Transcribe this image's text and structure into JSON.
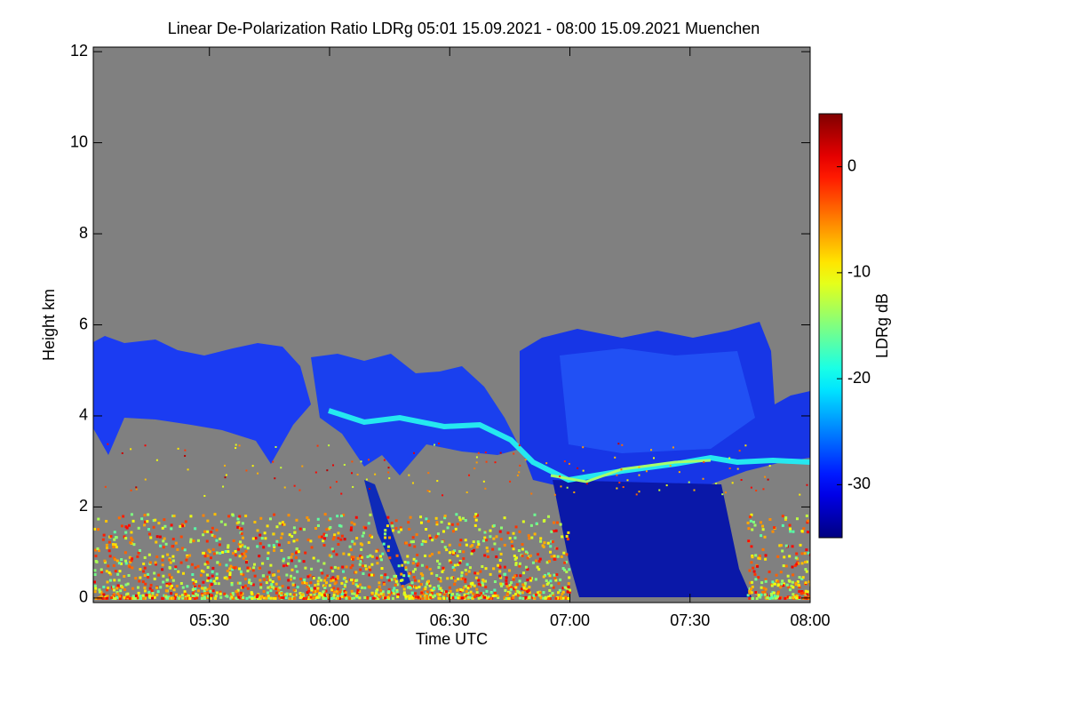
{
  "chart_data": {
    "type": "heatmap",
    "title": "Linear De-Polarization Ratio LDRg   05:01 15.09.2021 - 08:00 15.09.2021 Muenchen",
    "x_label": "Time UTC",
    "y_label": "Height km",
    "xlim": [
      301,
      480
    ],
    "xticks": [
      {
        "value": 330,
        "label": "05:30"
      },
      {
        "value": 360,
        "label": "06:00"
      },
      {
        "value": 390,
        "label": "06:30"
      },
      {
        "value": 420,
        "label": "07:00"
      },
      {
        "value": 450,
        "label": "07:30"
      },
      {
        "value": 480,
        "label": "08:00"
      }
    ],
    "ylim": [
      -0.1,
      12.1
    ],
    "yticks": [
      0,
      2,
      4,
      6,
      8,
      10,
      12
    ],
    "background": "#808080",
    "colorbar": {
      "label": "LDRg dB",
      "lim": [
        -35,
        5
      ],
      "ticks": [
        0,
        -10,
        -20,
        -30
      ],
      "colormap": "jet"
    }
  }
}
